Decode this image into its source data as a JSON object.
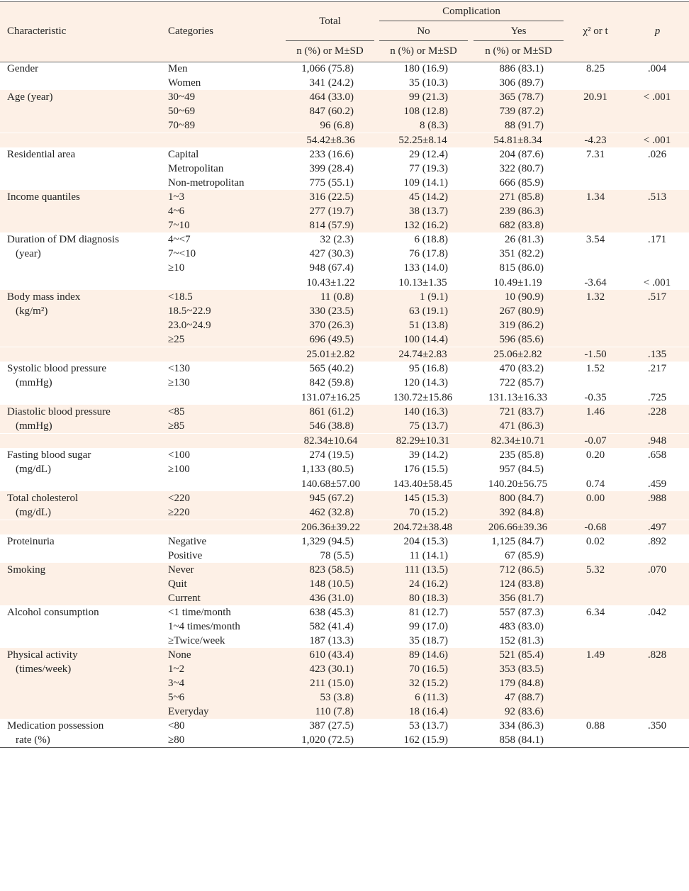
{
  "header": {
    "characteristic": "Characteristic",
    "categories": "Categories",
    "total": "Total",
    "complication": "Complication",
    "no": "No",
    "yes": "Yes",
    "stat": "χ² or t",
    "p": "p",
    "subheader": "n (%) or M±SD"
  },
  "table": {
    "groups": [
      {
        "characteristic": [
          "Gender"
        ],
        "rows": [
          {
            "cat": "Men",
            "total": "1,066 (75.8)",
            "no": "180 (16.9)",
            "yes": "886 (83.1)",
            "stat": "8.25",
            "p": ".004"
          },
          {
            "cat": "Women",
            "total": "341 (24.2)",
            "no": "35 (10.3)",
            "yes": "306 (89.7)"
          }
        ]
      },
      {
        "characteristic": [
          "Age (year)"
        ],
        "rows": [
          {
            "cat": "30~49",
            "total": "464 (33.0)",
            "no": "99 (21.3)",
            "yes": "365 (78.7)",
            "stat": "20.91",
            "p": "< .001"
          },
          {
            "cat": "50~69",
            "total": "847 (60.2)",
            "no": "108 (12.8)",
            "yes": "739 (87.2)"
          },
          {
            "cat": "70~89",
            "total": "96 (6.8)",
            "no": "8 (8.3)",
            "yes": "88 (91.7)"
          },
          {
            "total": "54.42±8.36",
            "no": "52.25±8.14",
            "yes": "54.81±8.34",
            "stat": "-4.23",
            "p": "< .001"
          }
        ]
      },
      {
        "characteristic": [
          "Residential area"
        ],
        "rows": [
          {
            "cat": "Capital",
            "total": "233 (16.6)",
            "no": "29 (12.4)",
            "yes": "204 (87.6)",
            "stat": "7.31",
            "p": ".026"
          },
          {
            "cat": "Metropolitan",
            "total": "399 (28.4)",
            "no": "77 (19.3)",
            "yes": "322 (80.7)"
          },
          {
            "cat": "Non-metropolitan",
            "total": "775 (55.1)",
            "no": "109 (14.1)",
            "yes": "666 (85.9)"
          }
        ]
      },
      {
        "characteristic": [
          "Income quantiles"
        ],
        "rows": [
          {
            "cat": "1~3",
            "total": "316 (22.5)",
            "no": "45 (14.2)",
            "yes": "271 (85.8)",
            "stat": "1.34",
            "p": ".513"
          },
          {
            "cat": "4~6",
            "total": "277 (19.7)",
            "no": "38 (13.7)",
            "yes": "239 (86.3)"
          },
          {
            "cat": "7~10",
            "total": "814 (57.9)",
            "no": "132 (16.2)",
            "yes": "682 (83.8)"
          }
        ]
      },
      {
        "characteristic": [
          "Duration of DM diagnosis",
          "(year)"
        ],
        "rows": [
          {
            "cat": "4~<7",
            "total": "32 (2.3)",
            "no": "6 (18.8)",
            "yes": "26 (81.3)",
            "stat": "3.54",
            "p": ".171"
          },
          {
            "cat": "7~<10",
            "total": "427 (30.3)",
            "no": "76 (17.8)",
            "yes": "351 (82.2)"
          },
          {
            "cat": "≥10",
            "total": "948 (67.4)",
            "no": "133 (14.0)",
            "yes": "815 (86.0)"
          },
          {
            "total": "10.43±1.22",
            "no": "10.13±1.35",
            "yes": "10.49±1.19",
            "stat": "-3.64",
            "p": "< .001"
          }
        ]
      },
      {
        "characteristic": [
          "Body mass index",
          "(kg/m²)"
        ],
        "rows": [
          {
            "cat": "<18.5",
            "total": "11 (0.8)",
            "no": "1 (9.1)",
            "yes": "10 (90.9)",
            "stat": "1.32",
            "p": ".517"
          },
          {
            "cat": "18.5~22.9",
            "total": "330 (23.5)",
            "no": "63 (19.1)",
            "yes": "267 (80.9)"
          },
          {
            "cat": "23.0~24.9",
            "total": "370 (26.3)",
            "no": "51 (13.8)",
            "yes": "319 (86.2)"
          },
          {
            "cat": "≥25",
            "total": "696 (49.5)",
            "no": "100 (14.4)",
            "yes": "596 (85.6)"
          },
          {
            "total": "25.01±2.82",
            "no": "24.74±2.83",
            "yes": "25.06±2.82",
            "stat": "-1.50",
            "p": ".135"
          }
        ]
      },
      {
        "characteristic": [
          "Systolic blood pressure",
          "(mmHg)"
        ],
        "rows": [
          {
            "cat": "<130",
            "total": "565 (40.2)",
            "no": "95 (16.8)",
            "yes": "470 (83.2)",
            "stat": "1.52",
            "p": ".217"
          },
          {
            "cat": "≥130",
            "total": "842 (59.8)",
            "no": "120 (14.3)",
            "yes": "722 (85.7)"
          },
          {
            "total": "131.07±16.25",
            "no": "130.72±15.86",
            "yes": "131.13±16.33",
            "stat": "-0.35",
            "p": ".725"
          }
        ]
      },
      {
        "characteristic": [
          "Diastolic blood pressure",
          "(mmHg)"
        ],
        "rows": [
          {
            "cat": "<85",
            "total": "861 (61.2)",
            "no": "140 (16.3)",
            "yes": "721 (83.7)",
            "stat": "1.46",
            "p": ".228"
          },
          {
            "cat": "≥85",
            "total": "546 (38.8)",
            "no": "75 (13.7)",
            "yes": "471 (86.3)"
          },
          {
            "total": "82.34±10.64",
            "no": "82.29±10.31",
            "yes": "82.34±10.71",
            "stat": "-0.07",
            "p": ".948"
          }
        ]
      },
      {
        "characteristic": [
          "Fasting blood sugar",
          "(mg/dL)"
        ],
        "rows": [
          {
            "cat": "<100",
            "total": "274 (19.5)",
            "no": "39 (14.2)",
            "yes": "235 (85.8)",
            "stat": "0.20",
            "p": ".658"
          },
          {
            "cat": "≥100",
            "total": "1,133 (80.5)",
            "no": "176 (15.5)",
            "yes": "957 (84.5)"
          },
          {
            "total": "140.68±57.00",
            "no": "143.40±58.45",
            "yes": "140.20±56.75",
            "stat": "0.74",
            "p": ".459"
          }
        ]
      },
      {
        "characteristic": [
          "Total cholesterol",
          "(mg/dL)"
        ],
        "rows": [
          {
            "cat": "<220",
            "total": "945 (67.2)",
            "no": "145 (15.3)",
            "yes": "800 (84.7)",
            "stat": "0.00",
            "p": ".988"
          },
          {
            "cat": "≥220",
            "total": "462 (32.8)",
            "no": "70 (15.2)",
            "yes": "392 (84.8)"
          },
          {
            "total": "206.36±39.22",
            "no": "204.72±38.48",
            "yes": "206.66±39.36",
            "stat": "-0.68",
            "p": ".497"
          }
        ]
      },
      {
        "characteristic": [
          "Proteinuria"
        ],
        "rows": [
          {
            "cat": "Negative",
            "total": "1,329 (94.5)",
            "no": "204 (15.3)",
            "yes": "1,125 (84.7)",
            "stat": "0.02",
            "p": ".892"
          },
          {
            "cat": "Positive",
            "total": "78 (5.5)",
            "no": "11 (14.1)",
            "yes": "67 (85.9)"
          }
        ]
      },
      {
        "characteristic": [
          "Smoking"
        ],
        "rows": [
          {
            "cat": "Never",
            "total": "823 (58.5)",
            "no": "111 (13.5)",
            "yes": "712 (86.5)",
            "stat": "5.32",
            "p": ".070"
          },
          {
            "cat": "Quit",
            "total": "148 (10.5)",
            "no": "24 (16.2)",
            "yes": "124 (83.8)"
          },
          {
            "cat": "Current",
            "total": "436 (31.0)",
            "no": "80 (18.3)",
            "yes": "356 (81.7)"
          }
        ]
      },
      {
        "characteristic": [
          "Alcohol consumption"
        ],
        "rows": [
          {
            "cat": "<1 time/month",
            "total": "638 (45.3)",
            "no": "81 (12.7)",
            "yes": "557 (87.3)",
            "stat": "6.34",
            "p": ".042"
          },
          {
            "cat": "1~4 times/month",
            "total": "582 (41.4)",
            "no": "99 (17.0)",
            "yes": "483 (83.0)"
          },
          {
            "cat": "≥Twice/week",
            "total": "187 (13.3)",
            "no": "35 (18.7)",
            "yes": "152 (81.3)"
          }
        ]
      },
      {
        "characteristic": [
          "Physical activity",
          "(times/week)"
        ],
        "rows": [
          {
            "cat": "None",
            "total": "610 (43.4)",
            "no": "89 (14.6)",
            "yes": "521 (85.4)",
            "stat": "1.49",
            "p": ".828"
          },
          {
            "cat": "1~2",
            "total": "423 (30.1)",
            "no": "70 (16.5)",
            "yes": "353 (83.5)"
          },
          {
            "cat": "3~4",
            "total": "211 (15.0)",
            "no": "32 (15.2)",
            "yes": "179 (84.8)"
          },
          {
            "cat": "5~6",
            "total": "53 (3.8)",
            "no": "6 (11.3)",
            "yes": "47 (88.7)"
          },
          {
            "cat": "Everyday",
            "total": "110 (7.8)",
            "no": "18 (16.4)",
            "yes": "92 (83.6)"
          }
        ]
      },
      {
        "characteristic": [
          "Medication possession",
          "rate (%)"
        ],
        "rows": [
          {
            "cat": "<80",
            "total": "387 (27.5)",
            "no": "53 (13.7)",
            "yes": "334 (86.3)",
            "stat": "0.88",
            "p": ".350"
          },
          {
            "cat": "≥80",
            "total": "1,020 (72.5)",
            "no": "162 (15.9)",
            "yes": "858 (84.1)"
          }
        ]
      }
    ]
  }
}
